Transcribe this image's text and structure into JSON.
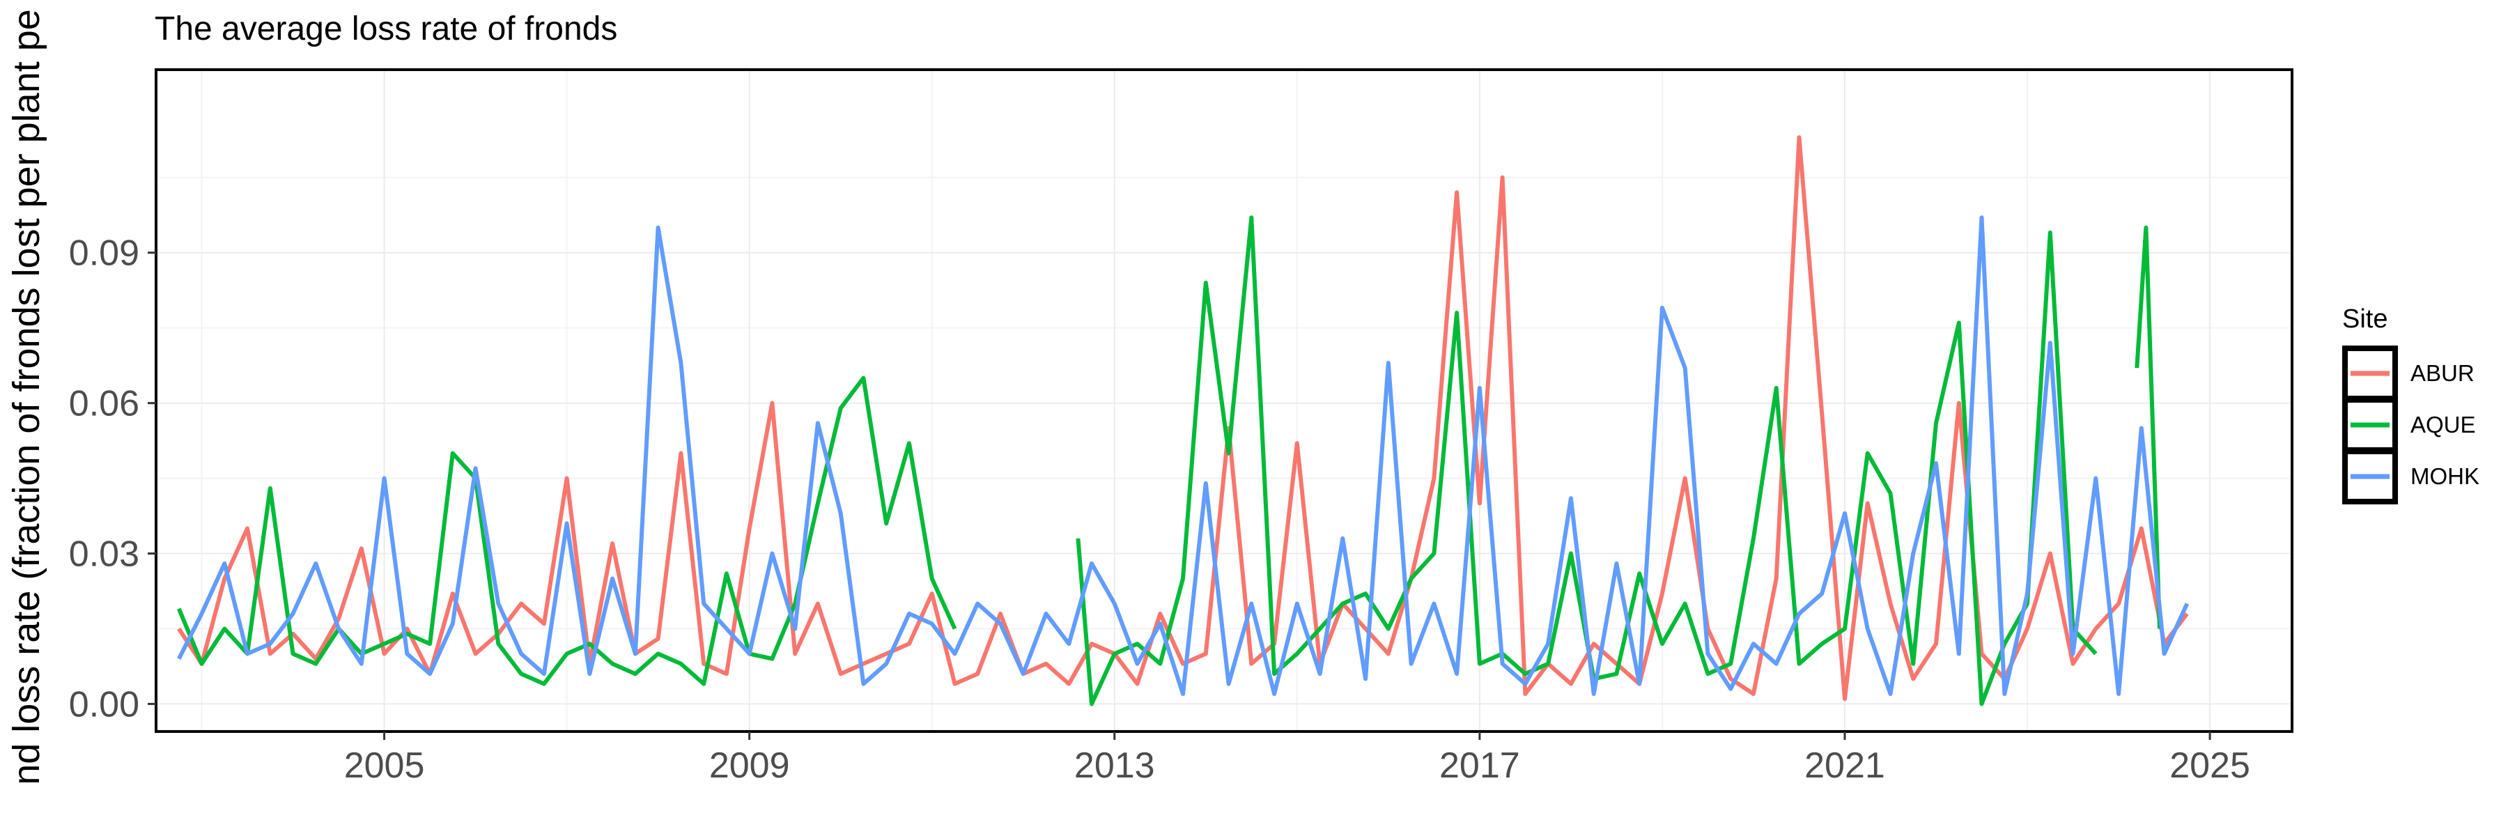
{
  "chart_data": {
    "type": "line",
    "title": "The average loss rate of fronds",
    "xlabel": "",
    "ylabel": "nd loss rate (fraction of fronds lost per plant pe",
    "xlim": [
      2002.5,
      2025.9
    ],
    "ylim": [
      -0.0055,
      0.1265
    ],
    "x_ticks": [
      2005,
      2009,
      2013,
      2017,
      2021,
      2025
    ],
    "y_ticks": [
      0.0,
      0.03,
      0.06,
      0.09
    ],
    "y_tick_labels": [
      "0.00",
      "0.03",
      "0.06",
      "0.09"
    ],
    "grid": true,
    "legend": {
      "title": "Site",
      "position": "right"
    },
    "series": [
      {
        "name": "ABUR",
        "color": "#F8766D",
        "x": [
          2002.75,
          2003.0,
          2003.25,
          2003.5,
          2003.75,
          2004.0,
          2004.25,
          2004.5,
          2004.75,
          2005.0,
          2005.25,
          2005.5,
          2005.75,
          2006.0,
          2006.25,
          2006.5,
          2006.75,
          2007.0,
          2007.25,
          2007.5,
          2007.75,
          2008.0,
          2008.25,
          2008.5,
          2008.75,
          2009.0,
          2009.25,
          2009.5,
          2009.75,
          2010.0,
          2010.25,
          2010.5,
          2010.75,
          2011.0,
          2011.25,
          2011.5,
          2011.75,
          2012.0,
          2012.25,
          2012.5,
          2012.75,
          2013.0,
          2013.25,
          2013.5,
          2013.75,
          2014.0,
          2014.25,
          2014.5,
          2014.75,
          2015.0,
          2015.25,
          2015.5,
          2015.75,
          2016.0,
          2016.25,
          2016.5,
          2016.75,
          2017.0,
          2017.25,
          2017.5,
          2017.75,
          2018.0,
          2018.25,
          2018.5,
          2018.75,
          2019.0,
          2019.25,
          2019.5,
          2019.75,
          2020.0,
          2020.25,
          2020.5,
          2020.75,
          2021.0,
          2021.25,
          2021.5,
          2021.75,
          2022.0,
          2022.25,
          2022.5,
          2022.75,
          2023.0,
          2023.25,
          2023.5,
          2023.75,
          2024.0,
          2024.25,
          2024.5,
          2024.75
        ],
        "values": [
          0.015,
          0.008,
          0.025,
          0.035,
          0.01,
          0.014,
          0.009,
          0.017,
          0.031,
          0.01,
          0.015,
          0.006,
          0.022,
          0.01,
          0.014,
          0.02,
          0.016,
          0.045,
          0.008,
          0.032,
          0.01,
          0.013,
          0.05,
          0.008,
          0.006,
          0.035,
          0.06,
          0.01,
          0.02,
          0.006,
          0.008,
          0.01,
          0.012,
          0.022,
          0.004,
          0.006,
          0.018,
          0.006,
          0.008,
          0.004,
          0.012,
          0.01,
          0.004,
          0.018,
          0.008,
          0.01,
          0.055,
          0.008,
          0.012,
          0.052,
          0.008,
          0.02,
          0.015,
          0.01,
          0.025,
          0.045,
          0.102,
          0.04,
          0.105,
          0.002,
          0.008,
          0.004,
          0.012,
          0.008,
          0.004,
          0.022,
          0.045,
          0.015,
          0.005,
          0.002,
          0.025,
          0.113,
          0.058,
          0.001,
          0.04,
          0.02,
          0.005,
          0.012,
          0.06,
          0.01,
          0.005,
          0.015,
          0.03,
          0.008,
          0.015,
          0.02,
          0.035,
          0.012,
          0.018
        ]
      },
      {
        "name": "AQUE",
        "color": "#00BA38",
        "x": [
          2002.75,
          2003.0,
          2003.25,
          2003.5,
          2003.75,
          2004.0,
          2004.25,
          2004.5,
          2004.75,
          2005.0,
          2005.25,
          2005.5,
          2005.75,
          2006.0,
          2006.25,
          2006.5,
          2006.75,
          2007.0,
          2007.25,
          2007.5,
          2007.75,
          2008.0,
          2008.25,
          2008.5,
          2008.75,
          2009.0,
          2009.25,
          2009.5,
          2009.75,
          2010.0,
          2010.25,
          2010.5,
          2010.75,
          2011.0,
          2011.25,
          null,
          2012.6,
          2012.75,
          2013.0,
          2013.25,
          2013.5,
          2013.75,
          2014.0,
          2014.25,
          2014.5,
          2014.75,
          2015.0,
          2015.25,
          2015.5,
          2015.75,
          2016.0,
          2016.25,
          2016.5,
          2016.75,
          2017.0,
          2017.25,
          2017.5,
          2017.75,
          2018.0,
          2018.25,
          2018.5,
          2018.75,
          2019.0,
          2019.25,
          2019.5,
          2019.75,
          2020.0,
          2020.25,
          2020.5,
          2020.75,
          2021.0,
          2021.25,
          2021.5,
          2021.75,
          2022.0,
          2022.25,
          2022.5,
          2022.75,
          2023.0,
          2023.25,
          2023.5,
          2023.75,
          null,
          2024.2,
          2024.3,
          2024.45
        ],
        "values": [
          0.019,
          0.008,
          0.015,
          0.01,
          0.043,
          0.01,
          0.008,
          0.015,
          0.01,
          0.012,
          0.014,
          0.012,
          0.05,
          0.045,
          0.012,
          0.006,
          0.004,
          0.01,
          0.012,
          0.008,
          0.006,
          0.01,
          0.008,
          0.004,
          0.026,
          0.01,
          0.009,
          0.02,
          0.04,
          0.059,
          0.065,
          0.036,
          0.052,
          0.025,
          0.015,
          null,
          0.033,
          0.0,
          0.01,
          0.012,
          0.008,
          0.025,
          0.084,
          0.05,
          0.097,
          0.006,
          0.01,
          0.015,
          0.02,
          0.022,
          0.015,
          0.025,
          0.03,
          0.078,
          0.008,
          0.01,
          0.006,
          0.008,
          0.03,
          0.005,
          0.006,
          0.026,
          0.012,
          0.02,
          0.006,
          0.008,
          0.033,
          0.063,
          0.008,
          0.012,
          0.015,
          0.05,
          0.042,
          0.008,
          0.056,
          0.076,
          0.0,
          0.012,
          0.02,
          0.094,
          0.015,
          0.01,
          null,
          0.067,
          0.095,
          0.015
        ]
      },
      {
        "name": "MOHK",
        "color": "#619CFF",
        "x": [
          2002.75,
          2003.0,
          2003.25,
          2003.5,
          2003.75,
          2004.0,
          2004.25,
          2004.5,
          2004.75,
          2005.0,
          2005.25,
          2005.5,
          2005.75,
          2006.0,
          2006.25,
          2006.5,
          2006.75,
          2007.0,
          2007.25,
          2007.5,
          2007.75,
          2008.0,
          2008.25,
          2008.5,
          2008.75,
          2009.0,
          2009.25,
          2009.5,
          2009.75,
          2010.0,
          2010.25,
          2010.5,
          2010.75,
          2011.0,
          2011.25,
          2011.5,
          2011.75,
          2012.0,
          2012.25,
          2012.5,
          2012.75,
          2013.0,
          2013.25,
          2013.5,
          2013.75,
          2014.0,
          2014.25,
          2014.5,
          2014.75,
          2015.0,
          2015.25,
          2015.5,
          2015.75,
          2016.0,
          2016.25,
          2016.5,
          2016.75,
          2017.0,
          2017.25,
          2017.5,
          2017.75,
          2018.0,
          2018.25,
          2018.5,
          2018.75,
          2019.0,
          2019.25,
          2019.5,
          2019.75,
          2020.0,
          2020.25,
          2020.5,
          2020.75,
          2021.0,
          2021.25,
          2021.5,
          2021.75,
          2022.0,
          2022.25,
          2022.5,
          2022.75,
          2023.0,
          2023.25,
          2023.5,
          2023.75,
          2024.0,
          2024.25,
          2024.5,
          2024.75
        ],
        "values": [
          0.009,
          0.018,
          0.028,
          0.01,
          0.012,
          0.018,
          0.028,
          0.015,
          0.008,
          0.045,
          0.01,
          0.006,
          0.016,
          0.047,
          0.02,
          0.01,
          0.006,
          0.036,
          0.006,
          0.025,
          0.01,
          0.095,
          0.068,
          0.02,
          0.015,
          0.01,
          0.03,
          0.015,
          0.056,
          0.038,
          0.004,
          0.008,
          0.018,
          0.016,
          0.01,
          0.02,
          0.016,
          0.006,
          0.018,
          0.012,
          0.028,
          0.02,
          0.008,
          0.016,
          0.002,
          0.044,
          0.004,
          0.02,
          0.002,
          0.02,
          0.006,
          0.033,
          0.005,
          0.068,
          0.008,
          0.02,
          0.006,
          0.063,
          0.008,
          0.004,
          0.012,
          0.041,
          0.002,
          0.028,
          0.004,
          0.079,
          0.067,
          0.01,
          0.003,
          0.012,
          0.008,
          0.018,
          0.022,
          0.038,
          0.015,
          0.002,
          0.03,
          0.048,
          0.01,
          0.097,
          0.002,
          0.022,
          0.072,
          0.01,
          0.045,
          0.002,
          0.055,
          0.01,
          0.02
        ]
      }
    ]
  }
}
